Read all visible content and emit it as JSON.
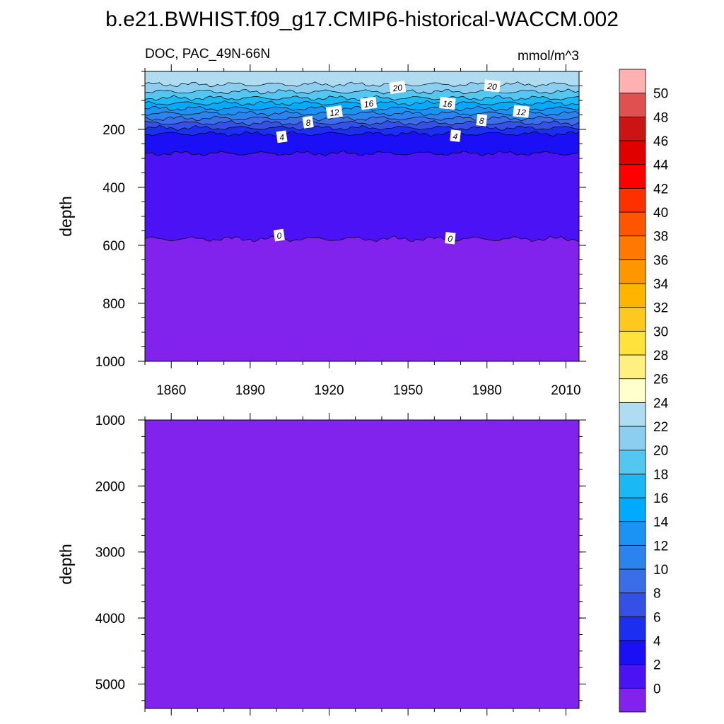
{
  "title": "b.e21.BWHIST.f09_g17.CMIP6-historical-WACCM.002",
  "chart_data": [
    {
      "type": "heatmap",
      "panel": "upper",
      "left_label": "DOC, PAC_49N-66N",
      "right_label": "mmol/m^3",
      "ylabel": "depth",
      "xlabel": "",
      "xlim": [
        1850,
        2015
      ],
      "ylim": [
        0,
        1000
      ],
      "y_inverted": true,
      "x_ticks": [
        1860,
        1890,
        1920,
        1950,
        1980,
        2010
      ],
      "x_tick_labels": [
        "1860",
        "1890",
        "1920",
        "1950",
        "1980",
        "2010"
      ],
      "y_ticks": [
        200,
        400,
        600,
        800,
        1000
      ],
      "y_tick_labels": [
        "200",
        "400",
        "600",
        "800",
        "1000"
      ],
      "contour_depths": [
        {
          "level": 0,
          "depth": 578
        },
        {
          "level": 2,
          "depth": 283
        },
        {
          "level": 4,
          "depth": 215
        },
        {
          "level": 6,
          "depth": 195
        },
        {
          "level": 8,
          "depth": 178
        },
        {
          "level": 10,
          "depth": 162
        },
        {
          "level": 12,
          "depth": 145
        },
        {
          "level": 14,
          "depth": 128
        },
        {
          "level": 16,
          "depth": 110
        },
        {
          "level": 18,
          "depth": 92
        },
        {
          "level": 20,
          "depth": 70
        },
        {
          "level": 22,
          "depth": 45
        }
      ],
      "contour_labels": [
        {
          "text": "20",
          "x": 1946,
          "depth": 55
        },
        {
          "text": "20",
          "x": 1982,
          "depth": 50
        },
        {
          "text": "16",
          "x": 1935,
          "depth": 110
        },
        {
          "text": "16",
          "x": 1965,
          "depth": 110
        },
        {
          "text": "12",
          "x": 1922,
          "depth": 140
        },
        {
          "text": "12",
          "x": 1993,
          "depth": 138
        },
        {
          "text": "8",
          "x": 1912,
          "depth": 175
        },
        {
          "text": "8",
          "x": 1978,
          "depth": 168
        },
        {
          "text": "4",
          "x": 1902,
          "depth": 225
        },
        {
          "text": "4",
          "x": 1968,
          "depth": 222
        },
        {
          "text": "0",
          "x": 1901,
          "depth": 565
        },
        {
          "text": "0",
          "x": 1966,
          "depth": 575
        }
      ]
    },
    {
      "type": "heatmap",
      "panel": "lower",
      "ylabel": "depth",
      "xlabel": "",
      "xlim": [
        1850,
        2015
      ],
      "ylim": [
        1000,
        5370
      ],
      "y_inverted": true,
      "y_ticks": [
        1000,
        2000,
        3000,
        4000,
        5000
      ],
      "y_tick_labels": [
        "1000",
        "2000",
        "3000",
        "4000",
        "5000"
      ],
      "fill_level": "below 0"
    }
  ],
  "colorbar": {
    "labels": [
      "0",
      "2",
      "4",
      "6",
      "8",
      "10",
      "12",
      "14",
      "16",
      "18",
      "20",
      "22",
      "24",
      "26",
      "28",
      "30",
      "32",
      "34",
      "36",
      "38",
      "40",
      "42",
      "44",
      "46",
      "48",
      "50"
    ],
    "colors_bottom_to_top": [
      "#8122ed",
      "#4a12f5",
      "#1a0ff5",
      "#1b2ff0",
      "#3450e6",
      "#3a6ee8",
      "#2a83ee",
      "#1a93f5",
      "#00aaff",
      "#1ab8f5",
      "#54c6f2",
      "#8ccef0",
      "#b0dcf2",
      "#ffffcc",
      "#fff07f",
      "#ffe23a",
      "#ffc81e",
      "#ffb400",
      "#ff9600",
      "#ff7800",
      "#ff5500",
      "#ff3000",
      "#ff0000",
      "#e00000",
      "#cc1414",
      "#e05050",
      "#ffb0b0"
    ]
  }
}
